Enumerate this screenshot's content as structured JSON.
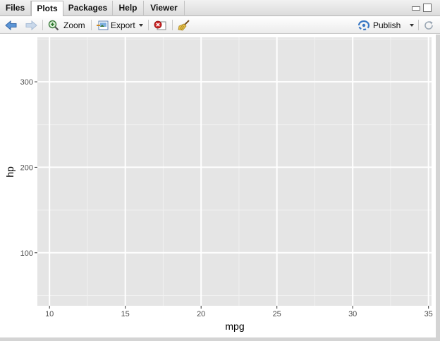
{
  "tabs": [
    {
      "label": "Files",
      "active": false
    },
    {
      "label": "Plots",
      "active": true
    },
    {
      "label": "Packages",
      "active": false
    },
    {
      "label": "Help",
      "active": false
    },
    {
      "label": "Viewer",
      "active": false
    }
  ],
  "toolbar": {
    "back_icon": "back-arrow-icon",
    "forward_icon": "forward-arrow-icon",
    "zoom_label": "Zoom",
    "export_label": "Export",
    "publish_label": "Publish"
  },
  "colors": {
    "panel_bg": "#e5e5e5",
    "grid_major": "#ffffff",
    "grid_minor": "#f1f1f1",
    "accent_blue": "#3a78c4"
  },
  "chart_data": {
    "type": "scatter",
    "x": [],
    "y": [],
    "xlabel": "mpg",
    "ylabel": "hp",
    "xlim": [
      9.2,
      35.2
    ],
    "ylim": [
      38,
      352
    ],
    "xticks": [
      10,
      15,
      20,
      25,
      30,
      35
    ],
    "yticks": [
      100,
      200,
      300
    ],
    "grid": true
  }
}
